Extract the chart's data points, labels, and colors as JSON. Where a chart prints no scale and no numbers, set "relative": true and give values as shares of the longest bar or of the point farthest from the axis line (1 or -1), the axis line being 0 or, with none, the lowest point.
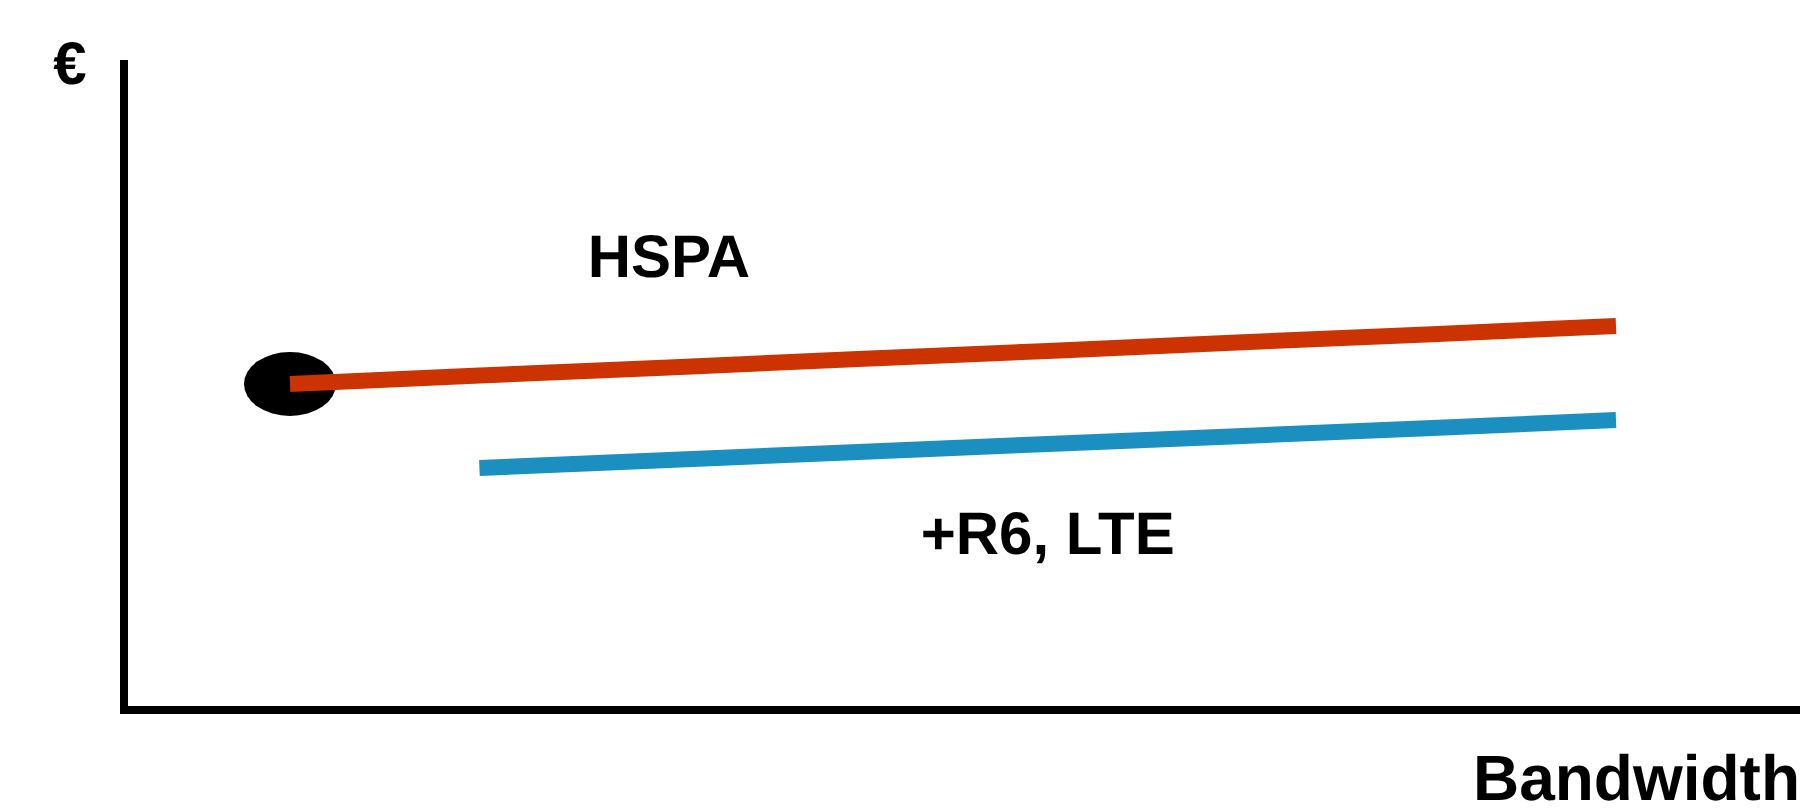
{
  "chart_data": {
    "type": "line",
    "relative": true,
    "xlabel": "Bandwidth",
    "ylabel": "€",
    "categories": [
      null,
      null,
      null,
      null,
      null,
      null,
      null,
      null
    ],
    "line_style": "solid",
    "series": [
      {
        "name": "HSPA",
        "color": "#cc3300",
        "values": [
          0.849,
          0.871,
          0.892,
          0.914,
          0.935,
          0.957,
          0.978,
          1
        ]
      },
      {
        "name": "+R6, LTE",
        "color": "#1a8fc0",
        "values": [
          null,
          0.63,
          0.651,
          0.672,
          0.693,
          0.713,
          0.734,
          0.755
        ]
      }
    ]
  }
}
